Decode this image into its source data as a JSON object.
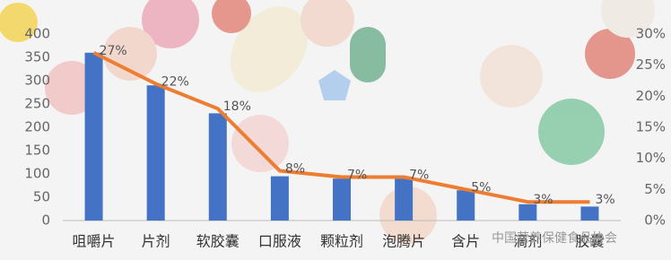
{
  "chart_data": {
    "type": "bar_line",
    "categories": [
      "咀嚼片",
      "片剂",
      "软胶囊",
      "口服液",
      "颗粒剂",
      "泡腾片",
      "含片",
      "滴剂",
      "胶囊"
    ],
    "series": [
      {
        "type": "bar",
        "color": "#4472c4",
        "values": [
          360,
          290,
          230,
          95,
          90,
          90,
          65,
          35,
          30
        ]
      },
      {
        "type": "line",
        "axis": "y2",
        "color": "#ed7d31",
        "values": [
          27,
          22,
          18,
          8,
          7,
          7,
          5,
          3,
          3
        ],
        "value_labels": [
          "27%",
          "22%",
          "18%",
          "8%",
          "7%",
          "7%",
          "5%",
          "3%",
          "3%"
        ]
      }
    ],
    "ylim": [
      0,
      400
    ],
    "yticks": [
      0,
      50,
      100,
      150,
      200,
      250,
      300,
      350,
      400
    ],
    "y2lim": [
      0,
      30
    ],
    "y2ticks": [
      {
        "value": 0,
        "label": "0%"
      },
      {
        "value": 5,
        "label": "5%"
      },
      {
        "value": 10,
        "label": "10%"
      },
      {
        "value": 15,
        "label": "15%"
      },
      {
        "value": 20,
        "label": "20%"
      },
      {
        "value": 25,
        "label": "25%"
      },
      {
        "value": 30,
        "label": "30%"
      }
    ],
    "watermark": "中国营养保健食品协会"
  }
}
